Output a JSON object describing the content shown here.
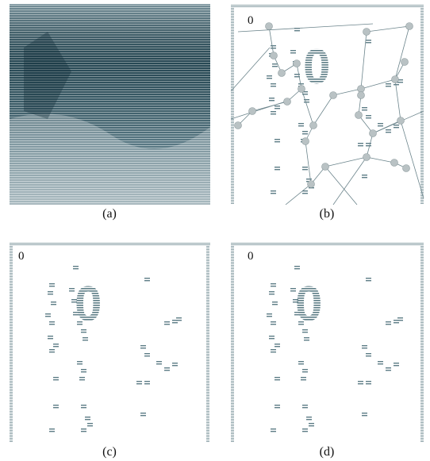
{
  "panels": [
    {
      "caption": "(a)"
    },
    {
      "caption": "(b)",
      "label": "0",
      "glyph": "0"
    },
    {
      "caption": "(c)",
      "label": "0",
      "glyph": "0"
    },
    {
      "caption": "(d)",
      "label": "0",
      "glyph": "0"
    }
  ]
}
